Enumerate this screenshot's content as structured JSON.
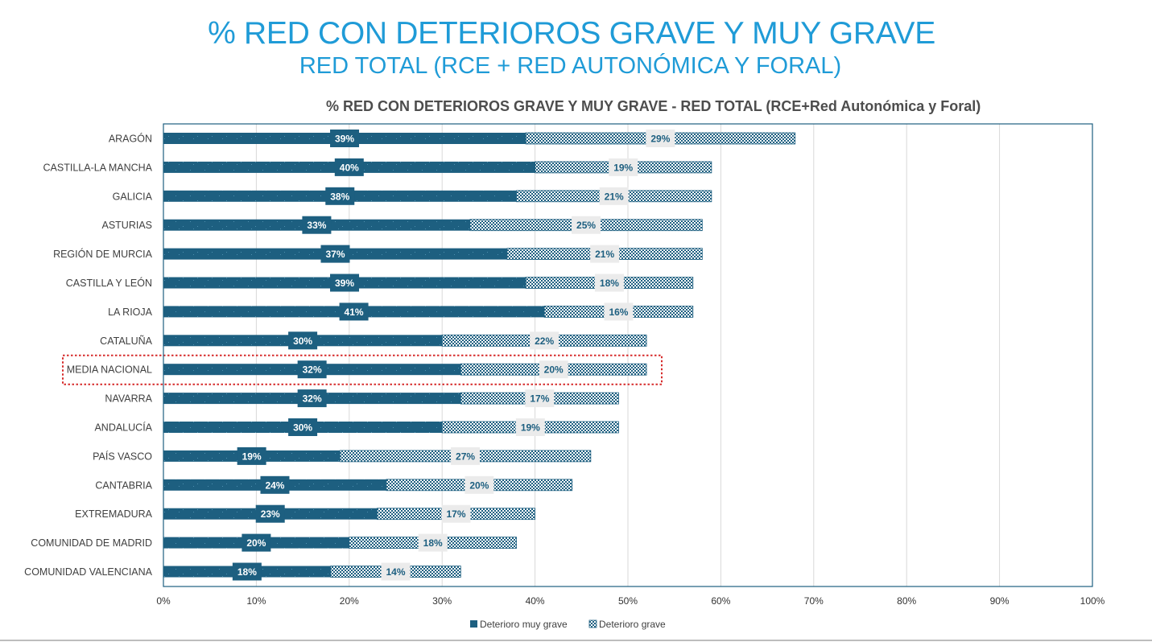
{
  "page": {
    "title": "% RED CON DETERIOROS GRAVE Y MUY GRAVE",
    "subtitle": "RED TOTAL (RCE + RED AUTONÓMICA Y FORAL)"
  },
  "colors": {
    "title": "#1f9bd7",
    "muy_grave": "#1d5f80",
    "grave_pattern": "#1d5f80",
    "label_bg": "#ebebeb",
    "highlight_border": "#d62b2b",
    "plot_border": "#1d5f80",
    "grid": "#d9d9d9"
  },
  "chart_data": {
    "type": "bar",
    "orientation": "horizontal",
    "stacked": true,
    "title": "% RED CON DETERIOROS GRAVE Y MUY GRAVE  - RED TOTAL (RCE+Red Autonómica y Foral)",
    "categories": [
      "ARAGÓN",
      "CASTILLA-LA MANCHA",
      "GALICIA",
      "ASTURIAS",
      "REGIÓN DE MURCIA",
      "CASTILLA Y LEÓN",
      "LA RIOJA",
      "CATALUÑA",
      "MEDIA NACIONAL",
      "NAVARRA",
      "ANDALUCÍA",
      "PAÍS VASCO",
      "CANTABRIA",
      "EXTREMADURA",
      "COMUNIDAD DE MADRID",
      "COMUNIDAD VALENCIANA"
    ],
    "highlighted_category": "MEDIA NACIONAL",
    "series": [
      {
        "name": "Deterioro muy grave",
        "values": [
          39,
          40,
          38,
          33,
          37,
          39,
          41,
          30,
          32,
          32,
          30,
          19,
          24,
          23,
          20,
          18
        ]
      },
      {
        "name": "Deterioro grave",
        "values": [
          29,
          19,
          21,
          25,
          21,
          18,
          16,
          22,
          20,
          17,
          19,
          27,
          20,
          17,
          18,
          14
        ]
      }
    ],
    "data_labels": {
      "muy_grave": [
        "39%",
        "40%",
        "38%",
        "33%",
        "37%",
        "39%",
        "41%",
        "30%",
        "32%",
        "32%",
        "30%",
        "19%",
        "24%",
        "23%",
        "20%",
        "18%"
      ],
      "grave": [
        "29%",
        "19%",
        "21%",
        "25%",
        "21%",
        "18%",
        "16%",
        "22%",
        "20%",
        "17%",
        "19%",
        "27%",
        "20%",
        "17%",
        "18%",
        "14%"
      ]
    },
    "x_ticks": [
      "0%",
      "10%",
      "20%",
      "30%",
      "40%",
      "50%",
      "60%",
      "70%",
      "80%",
      "90%",
      "100%"
    ],
    "xlim": [
      0,
      100
    ],
    "grid": true,
    "legend_position": "bottom-center"
  }
}
